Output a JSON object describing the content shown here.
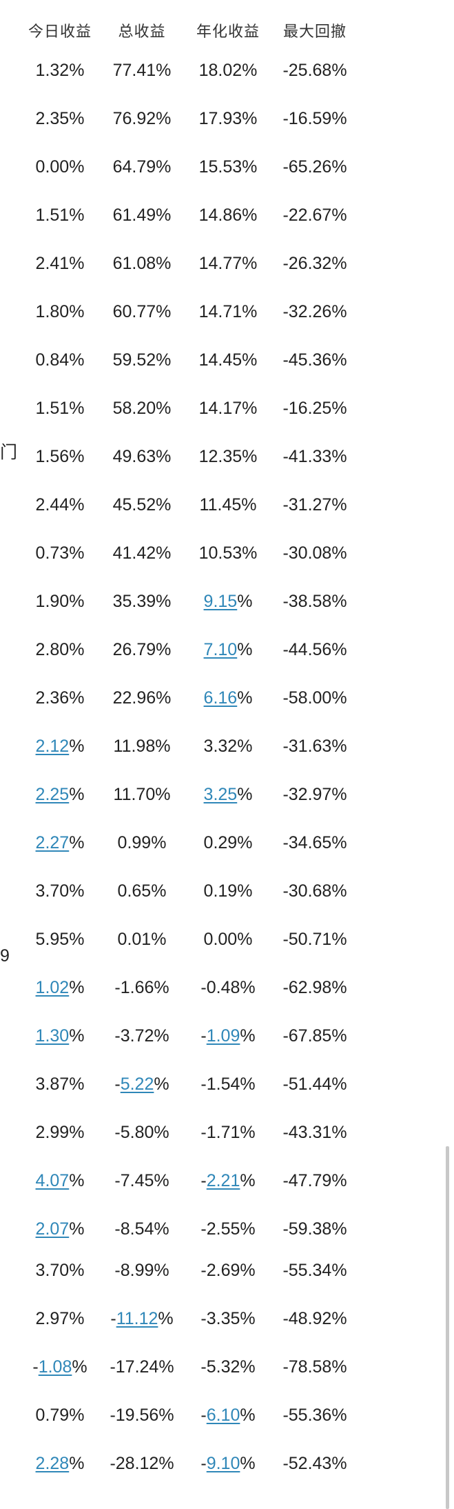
{
  "header": {
    "today": "今日收益",
    "total": "总收益",
    "annual": "年化收益",
    "drawdown": "最大回撤"
  },
  "left_fragments": [
    "门",
    "9"
  ],
  "rows": [
    {
      "today": [
        "1.32",
        "",
        "%"
      ],
      "total": [
        "77.41",
        "",
        "%"
      ],
      "annual": [
        "18.02",
        "",
        "%"
      ],
      "drawdown": [
        "-25.68%",
        "",
        ""
      ]
    },
    {
      "today": [
        "2.35",
        "",
        "%"
      ],
      "total": [
        "76.92",
        "",
        "%"
      ],
      "annual": [
        "17.93",
        "",
        "%"
      ],
      "drawdown": [
        "-16.59%",
        "",
        ""
      ]
    },
    {
      "today": [
        "0.00",
        "",
        "%"
      ],
      "total": [
        "64.79",
        "",
        "%"
      ],
      "annual": [
        "15.53",
        "",
        "%"
      ],
      "drawdown": [
        "-65.26%",
        "",
        ""
      ]
    },
    {
      "today": [
        "1.51",
        "",
        "%"
      ],
      "total": [
        "61.49",
        "",
        "%"
      ],
      "annual": [
        "14.86",
        "",
        "%"
      ],
      "drawdown": [
        "-22.67%",
        "",
        ""
      ]
    },
    {
      "today": [
        "2.41",
        "",
        "%"
      ],
      "total": [
        "61.08",
        "",
        "%"
      ],
      "annual": [
        "14.77",
        "",
        "%"
      ],
      "drawdown": [
        "-26.32%",
        "",
        ""
      ]
    },
    {
      "today": [
        "1.80",
        "",
        "%"
      ],
      "total": [
        "60.77",
        "",
        "%"
      ],
      "annual": [
        "14.71",
        "",
        "%"
      ],
      "drawdown": [
        "-32.26%",
        "",
        ""
      ]
    },
    {
      "today": [
        "0.84",
        "",
        "%"
      ],
      "total": [
        "59.52",
        "",
        "%"
      ],
      "annual": [
        "14.45",
        "",
        "%"
      ],
      "drawdown": [
        "-45.36%",
        "",
        ""
      ]
    },
    {
      "today": [
        "1.51",
        "",
        "%"
      ],
      "total": [
        "58.20",
        "",
        "%"
      ],
      "annual": [
        "14.17",
        "",
        "%"
      ],
      "drawdown": [
        "-16.25%",
        "",
        ""
      ]
    },
    {
      "today": [
        "1.56",
        "",
        "%"
      ],
      "total": [
        "49.63",
        "",
        "%"
      ],
      "annual": [
        "12.35",
        "",
        "%"
      ],
      "drawdown": [
        "-41.33%",
        "",
        ""
      ]
    },
    {
      "today": [
        "2.44",
        "",
        "%"
      ],
      "total": [
        "45.52",
        "",
        "%"
      ],
      "annual": [
        "11.45",
        "",
        "%"
      ],
      "drawdown": [
        "-31.27%",
        "",
        ""
      ]
    },
    {
      "today": [
        "0.73",
        "",
        "%"
      ],
      "total": [
        "41.42",
        "",
        "%"
      ],
      "annual": [
        "10.53",
        "",
        "%"
      ],
      "drawdown": [
        "-30.08%",
        "",
        ""
      ]
    },
    {
      "today": [
        "1.90",
        "",
        "%"
      ],
      "total": [
        "35.39",
        "",
        "%"
      ],
      "annual": [
        "",
        "9.15",
        "%"
      ],
      "drawdown": [
        "-38.58%",
        "",
        ""
      ]
    },
    {
      "today": [
        "2.80",
        "",
        "%"
      ],
      "total": [
        "26.79",
        "",
        "%"
      ],
      "annual": [
        "",
        "7.10",
        "%"
      ],
      "drawdown": [
        "-44.56%",
        "",
        ""
      ]
    },
    {
      "today": [
        "2.36",
        "",
        "%"
      ],
      "total": [
        "22.96",
        "",
        "%"
      ],
      "annual": [
        "",
        "6.16",
        "%"
      ],
      "drawdown": [
        "-58.00%",
        "",
        ""
      ]
    },
    {
      "today": [
        "",
        "2.12",
        "%"
      ],
      "total": [
        "11.98",
        "",
        "%"
      ],
      "annual": [
        "3.32",
        "",
        "%"
      ],
      "drawdown": [
        "-31.63%",
        "",
        ""
      ]
    },
    {
      "today": [
        "",
        "2.25",
        "%"
      ],
      "total": [
        "11.70",
        "",
        "%"
      ],
      "annual": [
        "",
        "3.25",
        "%"
      ],
      "drawdown": [
        "-32.97%",
        "",
        ""
      ]
    },
    {
      "today": [
        "",
        "2.27",
        "%"
      ],
      "total": [
        "0.99",
        "",
        "%"
      ],
      "annual": [
        "0.29",
        "",
        "%"
      ],
      "drawdown": [
        "-34.65%",
        "",
        ""
      ]
    },
    {
      "today": [
        "3.70",
        "",
        "%"
      ],
      "total": [
        "0.65",
        "",
        "%"
      ],
      "annual": [
        "0.19",
        "",
        "%"
      ],
      "drawdown": [
        "-30.68%",
        "",
        ""
      ]
    },
    {
      "today": [
        "5.95",
        "",
        "%"
      ],
      "total": [
        "0.01",
        "",
        "%"
      ],
      "annual": [
        "0.00",
        "",
        "%"
      ],
      "drawdown": [
        "-50.71%",
        "",
        ""
      ]
    },
    {
      "today": [
        "",
        "1.02",
        "%"
      ],
      "total": [
        "-1.66",
        "",
        "%"
      ],
      "annual": [
        "-0.48",
        "",
        "%"
      ],
      "drawdown": [
        "-62.98%",
        "",
        ""
      ]
    },
    {
      "today": [
        "",
        "1.30",
        "%"
      ],
      "total": [
        "-3.72",
        "",
        "%"
      ],
      "annual": [
        "-",
        "1.09",
        "%"
      ],
      "drawdown": [
        "-67.85%",
        "",
        ""
      ]
    },
    {
      "today": [
        "3.87",
        "",
        "%"
      ],
      "total": [
        "-",
        "5.22",
        "%"
      ],
      "annual": [
        "-1.54",
        "",
        "%"
      ],
      "drawdown": [
        "-51.44%",
        "",
        ""
      ]
    },
    {
      "today": [
        "2.99",
        "",
        "%"
      ],
      "total": [
        "-5.80",
        "",
        "%"
      ],
      "annual": [
        "-1.71",
        "",
        "%"
      ],
      "drawdown": [
        "-43.31%",
        "",
        ""
      ]
    },
    {
      "today": [
        "",
        "4.07",
        "%"
      ],
      "total": [
        "-7.45",
        "",
        "%"
      ],
      "annual": [
        "-",
        "2.21",
        "%"
      ],
      "drawdown": [
        "-47.79%",
        "",
        ""
      ]
    },
    {
      "today": [
        "",
        "2.07",
        "%"
      ],
      "total": [
        "-8.54",
        "",
        "%"
      ],
      "annual": [
        "-2.55",
        "",
        "%"
      ],
      "drawdown": [
        "-59.38%",
        "",
        ""
      ]
    },
    {
      "today": [
        "3.70",
        "",
        "%"
      ],
      "total": [
        "-8.99",
        "",
        "%"
      ],
      "annual": [
        "-2.69",
        "",
        "%"
      ],
      "drawdown": [
        "-55.34%",
        "",
        ""
      ]
    },
    {
      "today": [
        "2.97",
        "",
        "%"
      ],
      "total": [
        "-",
        "11.12",
        "%"
      ],
      "annual": [
        "-3.35",
        "",
        "%"
      ],
      "drawdown": [
        "-48.92%",
        "",
        ""
      ]
    },
    {
      "today": [
        "-",
        "1.08",
        "%"
      ],
      "total": [
        "-17.24",
        "",
        "%"
      ],
      "annual": [
        "-5.32",
        "",
        "%"
      ],
      "drawdown": [
        "-78.58%",
        "",
        ""
      ]
    },
    {
      "today": [
        "0.79",
        "",
        "%"
      ],
      "total": [
        "-19.56",
        "",
        "%"
      ],
      "annual": [
        "-",
        "6.10",
        "%"
      ],
      "drawdown": [
        "-55.36%",
        "",
        ""
      ]
    },
    {
      "today": [
        "",
        "2.28",
        "%"
      ],
      "total": [
        "-28.12",
        "",
        "%"
      ],
      "annual": [
        "-",
        "9.10",
        "%"
      ],
      "drawdown": [
        "-52.43%",
        "",
        ""
      ]
    }
  ],
  "colors": {
    "link": "#2f87b8",
    "text": "#222222",
    "header": "#333333"
  }
}
